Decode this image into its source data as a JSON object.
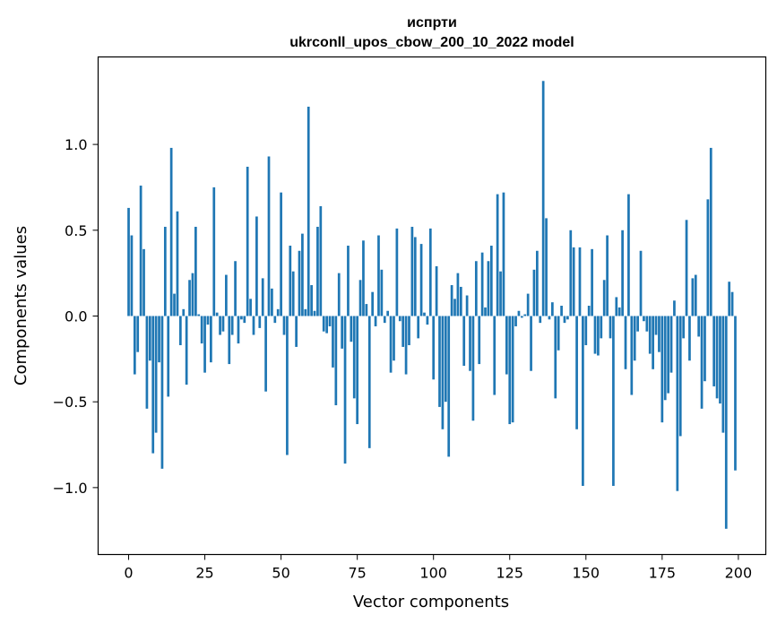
{
  "chart_data": {
    "type": "bar",
    "title_line1": "испрти",
    "title_line2": "ukrconll_upos_cbow_200_10_2022 model",
    "xlabel": "Vector components",
    "ylabel": "Components values",
    "xlim": [
      -10,
      209
    ],
    "ylim": [
      -1.39,
      1.51
    ],
    "x_ticks": [
      0,
      25,
      50,
      75,
      100,
      125,
      150,
      175,
      200
    ],
    "x_tick_labels": [
      "0",
      "25",
      "50",
      "75",
      "100",
      "125",
      "150",
      "175",
      "200"
    ],
    "y_ticks": [
      -1.0,
      -0.5,
      0.0,
      0.5,
      1.0
    ],
    "y_tick_labels": [
      "−1.0",
      "−0.5",
      "0.0",
      "0.5",
      "1.0"
    ],
    "bar_color": "#1f77b4",
    "grid": false,
    "values": [
      0.63,
      0.47,
      -0.34,
      -0.21,
      0.76,
      0.39,
      -0.54,
      -0.26,
      -0.8,
      -0.68,
      -0.27,
      -0.89,
      0.52,
      -0.47,
      0.98,
      0.13,
      0.61,
      -0.17,
      0.04,
      -0.4,
      0.21,
      0.25,
      0.52,
      0.01,
      -0.16,
      -0.33,
      -0.05,
      -0.27,
      0.75,
      0.02,
      -0.11,
      -0.09,
      0.24,
      -0.28,
      -0.11,
      0.32,
      -0.16,
      -0.02,
      -0.04,
      0.87,
      0.1,
      -0.11,
      0.58,
      -0.07,
      0.22,
      -0.44,
      0.93,
      0.16,
      -0.04,
      0.04,
      0.72,
      -0.11,
      -0.81,
      0.41,
      0.26,
      -0.18,
      0.38,
      0.48,
      0.04,
      1.22,
      0.18,
      0.03,
      0.52,
      0.64,
      -0.09,
      -0.1,
      -0.06,
      -0.3,
      -0.52,
      0.25,
      -0.19,
      -0.86,
      0.41,
      -0.15,
      -0.48,
      -0.63,
      0.21,
      0.44,
      0.07,
      -0.77,
      0.14,
      -0.06,
      0.47,
      0.27,
      -0.04,
      0.03,
      -0.33,
      -0.26,
      0.51,
      -0.03,
      -0.18,
      -0.34,
      -0.17,
      0.52,
      0.46,
      -0.13,
      0.42,
      0.02,
      -0.05,
      0.51,
      -0.37,
      0.29,
      -0.53,
      -0.66,
      -0.5,
      -0.82,
      0.18,
      0.1,
      0.25,
      0.17,
      -0.29,
      0.12,
      -0.32,
      -0.61,
      0.32,
      -0.28,
      0.37,
      0.05,
      0.32,
      0.41,
      -0.46,
      0.71,
      0.26,
      0.72,
      -0.34,
      -0.63,
      -0.62,
      -0.06,
      0.03,
      -0.01,
      0.01,
      0.13,
      -0.32,
      0.27,
      0.38,
      -0.04,
      1.37,
      0.57,
      -0.02,
      0.08,
      -0.48,
      -0.2,
      0.06,
      -0.04,
      -0.02,
      0.5,
      0.4,
      -0.66,
      0.4,
      -0.99,
      -0.17,
      0.06,
      0.39,
      -0.22,
      -0.23,
      -0.13,
      0.21,
      0.47,
      -0.13,
      -0.99,
      0.11,
      0.05,
      0.5,
      -0.31,
      0.71,
      -0.46,
      -0.26,
      -0.09,
      0.38,
      -0.03,
      -0.09,
      -0.22,
      -0.31,
      -0.11,
      -0.21,
      -0.62,
      -0.49,
      -0.45,
      -0.33,
      0.09,
      -1.02,
      -0.7,
      -0.13,
      0.56,
      -0.26,
      0.22,
      0.24,
      -0.12,
      -0.54,
      -0.38,
      0.68,
      0.98,
      -0.41,
      -0.48,
      -0.51,
      -0.68,
      -1.24,
      0.2,
      0.14,
      -0.9
    ]
  }
}
